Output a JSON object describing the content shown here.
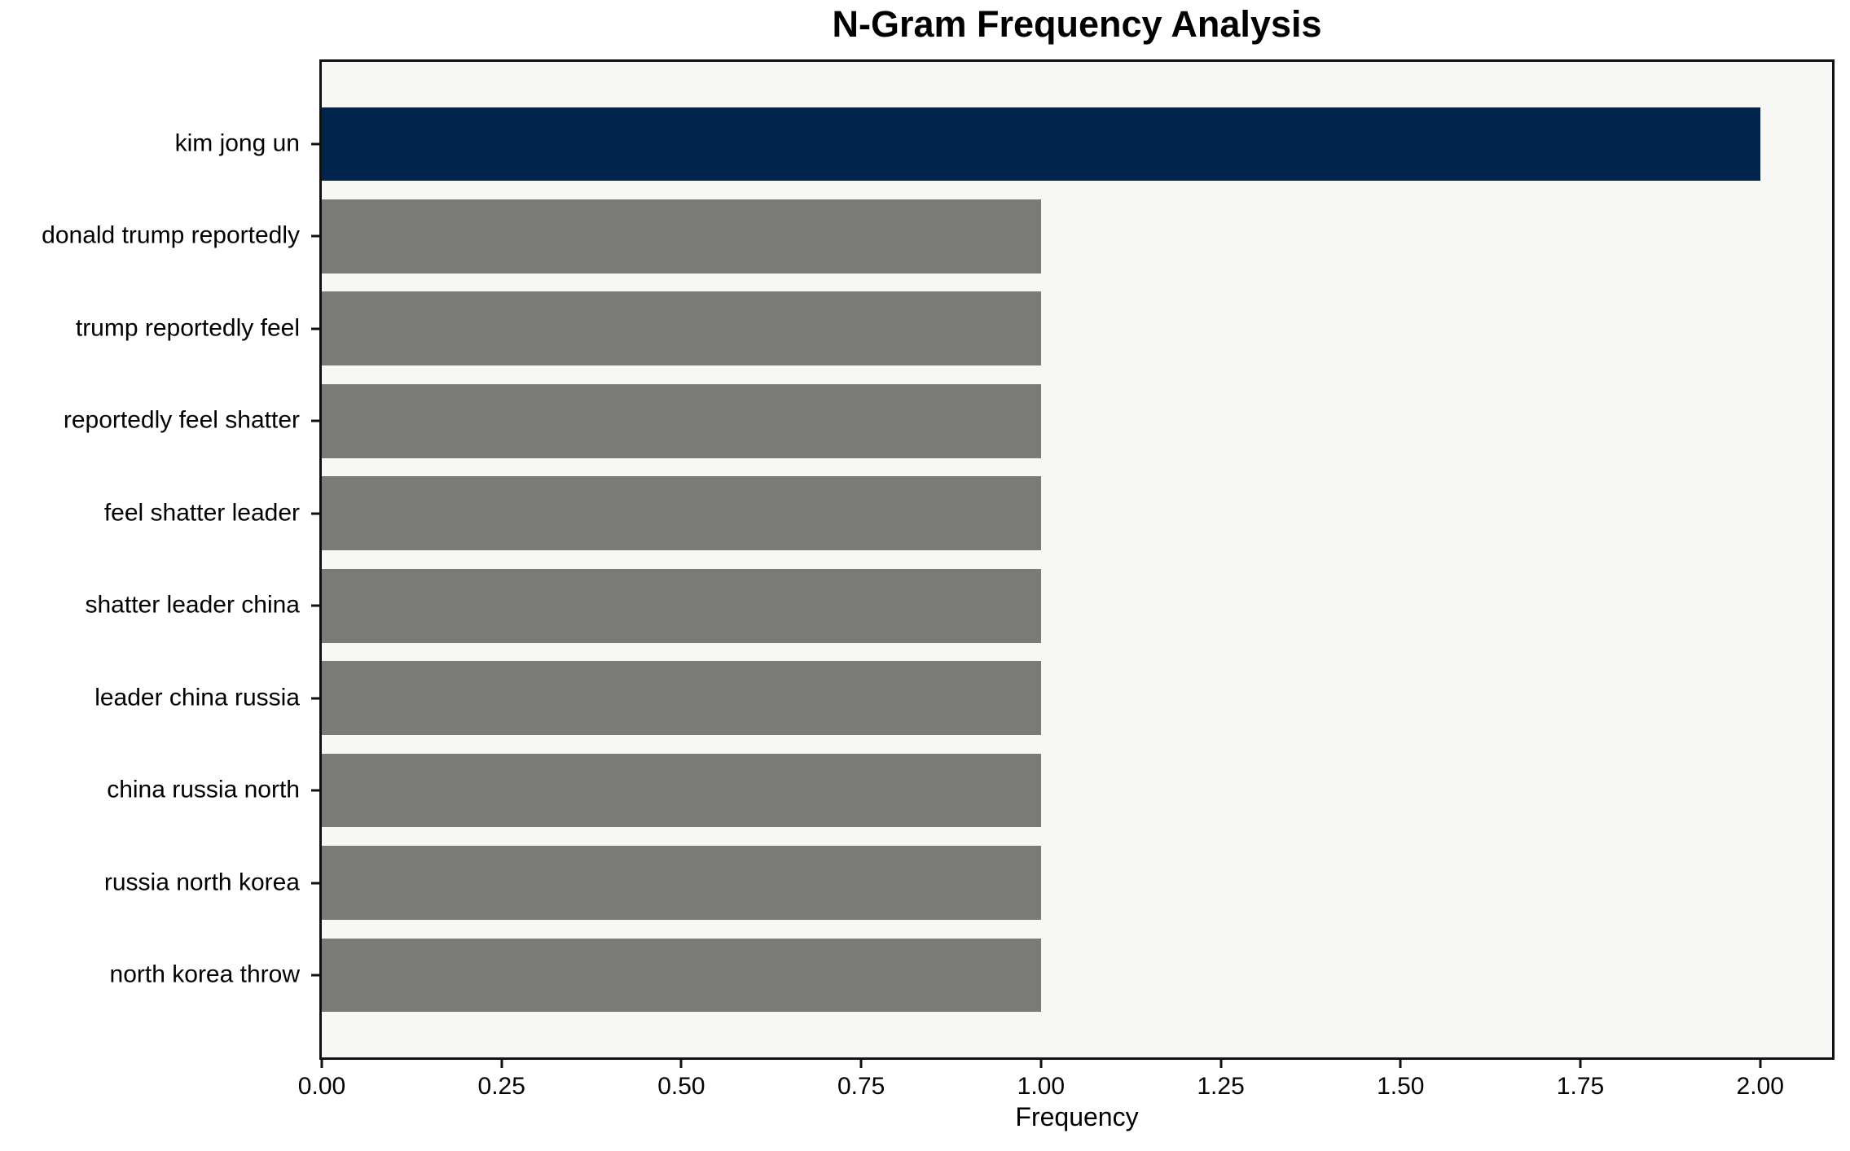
{
  "chart_data": {
    "type": "bar",
    "orientation": "horizontal",
    "title": "N-Gram Frequency Analysis",
    "xlabel": "Frequency",
    "ylabel": "",
    "categories": [
      "kim jong un",
      "donald trump reportedly",
      "trump reportedly feel",
      "reportedly feel shatter",
      "feel shatter leader",
      "shatter leader china",
      "leader china russia",
      "china russia north",
      "russia north korea",
      "north korea throw"
    ],
    "values": [
      2,
      1,
      1,
      1,
      1,
      1,
      1,
      1,
      1,
      1
    ],
    "highlight_index": 0,
    "xlim": [
      0,
      2.1
    ],
    "x_tick_labels": [
      "0.00",
      "0.25",
      "0.50",
      "0.75",
      "1.00",
      "1.25",
      "1.50",
      "1.75",
      "2.00"
    ],
    "x_tick_values": [
      0,
      0.25,
      0.5,
      0.75,
      1.0,
      1.25,
      1.5,
      1.75,
      2.0
    ],
    "grid": false,
    "legend": "none",
    "colors": {
      "highlight_bar": "#02254e",
      "bar": "#7a7a77",
      "plot_background": "#f7f7f6",
      "figure_background": "#ffffff",
      "axis": "#111111",
      "text": "#000000"
    }
  }
}
